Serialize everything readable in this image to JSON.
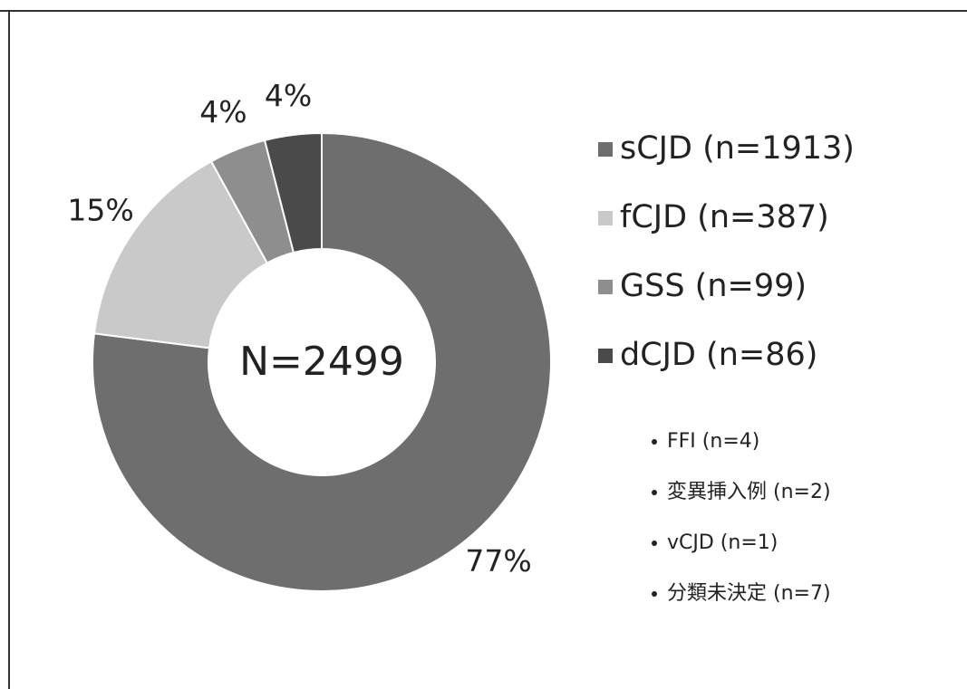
{
  "chart_data": {
    "type": "pie",
    "donut": true,
    "center_label": "N=2499",
    "categories": [
      "sCJD (n=1913)",
      "fCJD (n=387)",
      "GSS (n=99)",
      "dCJD (n=86)"
    ],
    "values": [
      77,
      15,
      4,
      4
    ],
    "value_labels": [
      "77%",
      "15%",
      "4%",
      "4%"
    ],
    "colors": [
      "#6e6e6e",
      "#c9c9c9",
      "#8e8e8e",
      "#4a4a4a"
    ],
    "notes": [
      "FFI (n=4)",
      "変異挿入例 (n=2)",
      "vCJD (n=1)",
      "分類未決定 (n=7)"
    ]
  }
}
